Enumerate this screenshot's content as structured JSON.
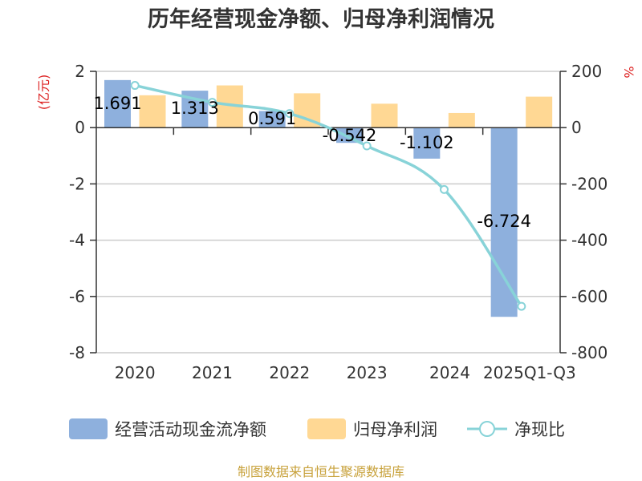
{
  "chart_data": {
    "type": "bar",
    "title": "历年经营现金净额、归母净利润情况",
    "categories": [
      "2020",
      "2021",
      "2022",
      "2023",
      "2024",
      "2025Q1-Q3"
    ],
    "series": [
      {
        "name": "经营活动现金流净额",
        "kind": "bar",
        "axis": "left",
        "color": "#8EB0DD",
        "values": [
          1.691,
          1.313,
          0.591,
          -0.542,
          -1.102,
          -6.724
        ],
        "labels": [
          "1.691",
          "1.313",
          "0.591",
          "-0.542",
          "-1.102",
          "-6.724"
        ]
      },
      {
        "name": "归母净利润",
        "kind": "bar",
        "axis": "left",
        "color": "#FFD894",
        "values": [
          1.15,
          1.5,
          1.22,
          0.85,
          0.52,
          1.1
        ]
      },
      {
        "name": "净现比",
        "kind": "line",
        "axis": "right",
        "color": "#88D3D8",
        "values": [
          150,
          90,
          50,
          -65,
          -220,
          -635
        ]
      }
    ],
    "y_left": {
      "unit": "(亿元)",
      "min": -8,
      "max": 2,
      "ticks": [
        "-8",
        "-6",
        "-4",
        "-2",
        "0",
        "2"
      ],
      "tick_values": [
        -8,
        -6,
        -4,
        -2,
        0,
        2
      ]
    },
    "y_right": {
      "unit": "%",
      "min": -800,
      "max": 200,
      "ticks": [
        "-800",
        "-600",
        "-400",
        "-200",
        "0",
        "200"
      ],
      "tick_values": [
        -800,
        -600,
        -400,
        -200,
        0,
        200
      ]
    },
    "grid": true,
    "legend_position": "bottom",
    "source": "制图数据来自恒生聚源数据库"
  }
}
